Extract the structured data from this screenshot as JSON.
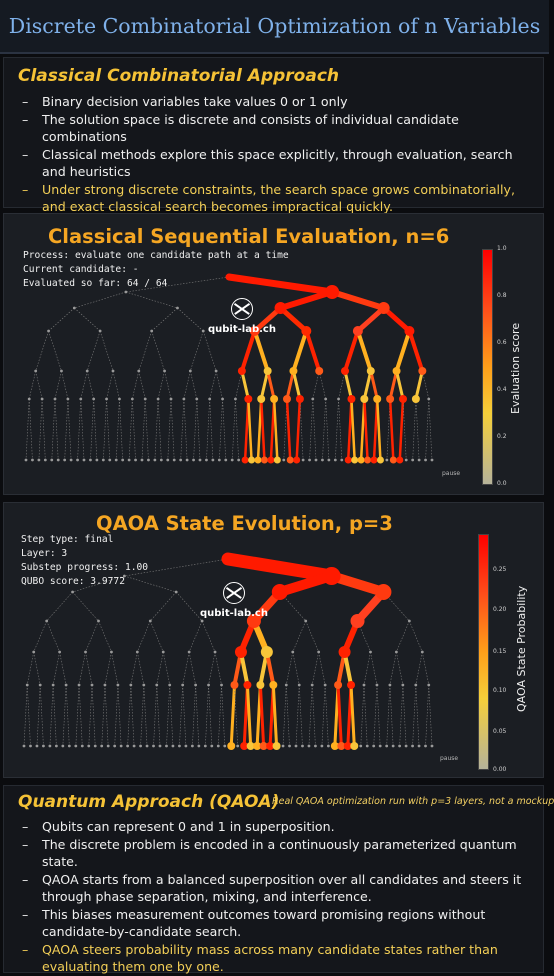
{
  "title": "Discrete Combinatorial Optimization of n Variables",
  "classical_section": {
    "heading": "Classical Combinatorial Approach",
    "bullets": [
      "Binary decision variables take values 0 or 1 only",
      "The solution space is discrete and consists of individual candidate combinations",
      "Classical methods explore this space explicitly, through evaluation, search and heuristics",
      "Under strong discrete constraints, the search space grows combinatorially, and exact classical search becomes impractical quickly."
    ]
  },
  "classical_panel": {
    "title": "Classical Sequential Evaluation, n=6",
    "info": [
      "Process: evaluate one candidate path at a time",
      "Current candidate: -",
      "Evaluated so far: 64 / 64"
    ],
    "logo_text": "qubit-lab.ch",
    "pause_label": "pause",
    "colorbar_label": "Evaluation score",
    "colorbar_ticks": [
      "1.0",
      "0.8",
      "0.6",
      "0.4",
      "0.2",
      "0.0"
    ],
    "tree_depth": 6,
    "highlight": {
      "d1": [
        1
      ],
      "d2": [
        2,
        3
      ],
      "d3": [
        4,
        5,
        6,
        7
      ],
      "d4": [
        8,
        9,
        10,
        11,
        12,
        13,
        14,
        15
      ],
      "d5": [
        17,
        18,
        19,
        20,
        21,
        25,
        26,
        27,
        28,
        29,
        30
      ],
      "d6": [
        34,
        35,
        36,
        37,
        38,
        39,
        41,
        42,
        50,
        51,
        52,
        53,
        54,
        55,
        57,
        58
      ]
    }
  },
  "qaoa_panel": {
    "title": "QAOA State Evolution, p=3",
    "info": [
      "Step type: final",
      "Layer: 3",
      "Substep progress: 1.00",
      "QUBO score: 3.9772"
    ],
    "logo_text": "qubit-lab.ch",
    "pause_label": "pause",
    "colorbar_label": "QAOA State Probability",
    "colorbar_ticks": [
      "0.25",
      "0.20",
      "0.15",
      "0.10",
      "0.05",
      "0.00"
    ],
    "tree_depth": 6,
    "highlight": {
      "d1": [
        1
      ],
      "d2": [
        2,
        3
      ],
      "d3": [
        4,
        6
      ],
      "d4": [
        8,
        9,
        12
      ],
      "d5": [
        16,
        17,
        18,
        19,
        24,
        25
      ],
      "d6": [
        32,
        34,
        35,
        36,
        37,
        38,
        39,
        48,
        49,
        50,
        51
      ]
    }
  },
  "quantum_section": {
    "heading": "Quantum Approach (QAOA)",
    "note": "Real QAOA optimization run with p=3 layers, not a mockup",
    "bullets": [
      "Qubits can represent 0 and 1 in superposition.",
      "The discrete problem is encoded in a continuously parameterized quantum state.",
      "QAOA starts from a balanced superposition over all candidates and steers it through phase separation, mixing, and interference.",
      "This biases measurement outcomes toward promising regions without candidate-by-candidate search.",
      "QAOA steers probability mass across many candidate states rather than evaluating them one by one."
    ]
  },
  "colors": {
    "accent_gold": "#f5c236",
    "title_blue": "#7fb1ea",
    "panel_title_orange": "#f5a623",
    "hot_red": "#ff1a00",
    "dim_gray": "#8a8a8a"
  }
}
